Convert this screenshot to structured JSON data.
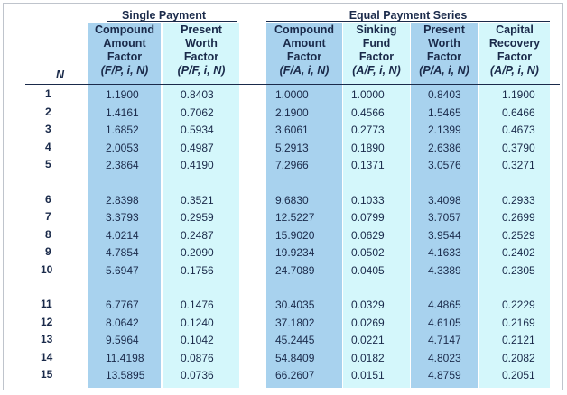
{
  "groups": {
    "single_payment": "Single Payment",
    "equal_payment_series": "Equal Payment Series"
  },
  "n_label": "N",
  "columns": [
    {
      "line1": "Compound",
      "line2": "Amount",
      "line3": "Factor",
      "notation": "(F/P, i, N)"
    },
    {
      "line1": "Present",
      "line2": "Worth",
      "line3": "Factor",
      "notation": "(P/F, i, N)"
    },
    {
      "line1": "Compound",
      "line2": "Amount",
      "line3": "Factor",
      "notation": "(F/A, i, N)"
    },
    {
      "line1": "Sinking",
      "line2": "Fund",
      "line3": "Factor",
      "notation": "(A/F, i, N)"
    },
    {
      "line1": "Present",
      "line2": "Worth",
      "line3": "Factor",
      "notation": "(P/A, i, N)"
    },
    {
      "line1": "Capital",
      "line2": "Recovery",
      "line3": "Factor",
      "notation": "(A/P, i, N)"
    }
  ],
  "rows": [
    {
      "n": "1",
      "fp": "1.1900",
      "pf": "0.8403",
      "fa": "1.0000",
      "af": "1.0000",
      "pa": "0.8403",
      "ap": "1.1900"
    },
    {
      "n": "2",
      "fp": "1.4161",
      "pf": "0.7062",
      "fa": "2.1900",
      "af": "0.4566",
      "pa": "1.5465",
      "ap": "0.6466"
    },
    {
      "n": "3",
      "fp": "1.6852",
      "pf": "0.5934",
      "fa": "3.6061",
      "af": "0.2773",
      "pa": "2.1399",
      "ap": "0.4673"
    },
    {
      "n": "4",
      "fp": "2.0053",
      "pf": "0.4987",
      "fa": "5.2913",
      "af": "0.1890",
      "pa": "2.6386",
      "ap": "0.3790"
    },
    {
      "n": "5",
      "fp": "2.3864",
      "pf": "0.4190",
      "fa": "7.2966",
      "af": "0.1371",
      "pa": "3.0576",
      "ap": "0.3271"
    },
    {
      "n": "6",
      "fp": "2.8398",
      "pf": "0.3521",
      "fa": "9.6830",
      "af": "0.1033",
      "pa": "3.4098",
      "ap": "0.2933"
    },
    {
      "n": "7",
      "fp": "3.3793",
      "pf": "0.2959",
      "fa": "12.5227",
      "af": "0.0799",
      "pa": "3.7057",
      "ap": "0.2699"
    },
    {
      "n": "8",
      "fp": "4.0214",
      "pf": "0.2487",
      "fa": "15.9020",
      "af": "0.0629",
      "pa": "3.9544",
      "ap": "0.2529"
    },
    {
      "n": "9",
      "fp": "4.7854",
      "pf": "0.2090",
      "fa": "19.9234",
      "af": "0.0502",
      "pa": "4.1633",
      "ap": "0.2402"
    },
    {
      "n": "10",
      "fp": "5.6947",
      "pf": "0.1756",
      "fa": "24.7089",
      "af": "0.0405",
      "pa": "4.3389",
      "ap": "0.2305"
    },
    {
      "n": "11",
      "fp": "6.7767",
      "pf": "0.1476",
      "fa": "30.4035",
      "af": "0.0329",
      "pa": "4.4865",
      "ap": "0.2229"
    },
    {
      "n": "12",
      "fp": "8.0642",
      "pf": "0.1240",
      "fa": "37.1802",
      "af": "0.0269",
      "pa": "4.6105",
      "ap": "0.2169"
    },
    {
      "n": "13",
      "fp": "9.5964",
      "pf": "0.1042",
      "fa": "45.2445",
      "af": "0.0221",
      "pa": "4.7147",
      "ap": "0.2121"
    },
    {
      "n": "14",
      "fp": "11.4198",
      "pf": "0.0876",
      "fa": "54.8409",
      "af": "0.0182",
      "pa": "4.8023",
      "ap": "0.2082"
    },
    {
      "n": "15",
      "fp": "13.5895",
      "pf": "0.0736",
      "fa": "66.2607",
      "af": "0.0151",
      "pa": "4.8759",
      "ap": "0.2051"
    }
  ]
}
